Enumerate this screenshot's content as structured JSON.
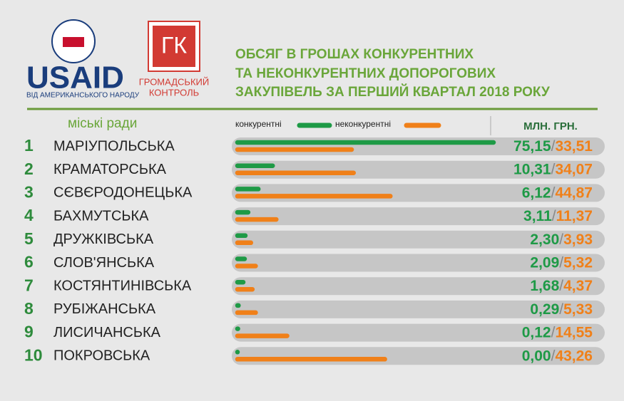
{
  "chart_data": {
    "type": "bar",
    "orientation": "horizontal",
    "logos": {
      "usaid": "USAID",
      "usaid_tagline": "ВІД АМЕРИКАНСЬКОГО НАРОДУ",
      "gk": "ГК",
      "gk_line1": "ГРОМАДСЬКИЙ",
      "gk_line2": "КОНТРОЛЬ"
    },
    "title_lines": [
      "ОБСЯГ В ГРОШАХ КОНКУРЕНТНИХ",
      "ТА НЕКОНКУРЕНТНИХ ДОПОРОГОВИХ",
      "ЗАКУПІВЕЛЬ ЗА ПЕРШИЙ КВАРТАЛ 2018 РОКУ"
    ],
    "category_header": "міські ради",
    "unit": "МЛН. ГРН.",
    "value_separator": "/",
    "ranks": [
      "1",
      "2",
      "3",
      "4",
      "5",
      "6",
      "7",
      "8",
      "9",
      "10"
    ],
    "categories": [
      "МАРІУПОЛЬСЬКА",
      "КРАМАТОРСЬКА",
      "СЄВЄРОДОНЕЦЬКА",
      "БАХМУТСЬКА",
      "ДРУЖКІВСЬКА",
      "СЛОВ'ЯНСЬКА",
      "КОСТЯНТИНІВСЬКА",
      "РУБІЖАНСЬКА",
      "ЛИСИЧАНСЬКА",
      "ПОКРОВСЬКА"
    ],
    "series": [
      {
        "name": "конкурентні",
        "color": "#1e9a46",
        "values": [
          75.15,
          10.31,
          6.12,
          3.11,
          2.3,
          2.09,
          1.68,
          0.29,
          0.12,
          0.0
        ],
        "value_labels": [
          "75,15",
          "10,31",
          "6,12",
          "3,11",
          "2,30",
          "2,09",
          "1,68",
          "0,29",
          "0,12",
          "0,00"
        ]
      },
      {
        "name": "неконкурентні",
        "color": "#f08019",
        "values": [
          33.51,
          34.07,
          44.87,
          11.37,
          3.93,
          5.32,
          4.37,
          5.33,
          14.55,
          43.26
        ],
        "value_labels": [
          "33,51",
          "34,07",
          "44,87",
          "11,37",
          "3,93",
          "5,32",
          "4,37",
          "5,33",
          "14,55",
          "43,26"
        ]
      }
    ]
  }
}
